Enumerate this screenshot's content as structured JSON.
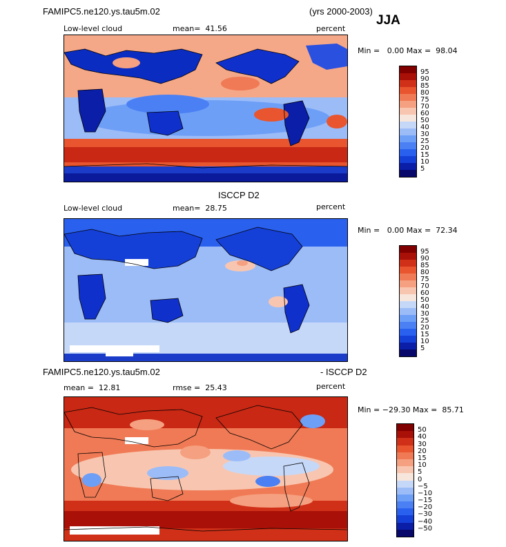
{
  "header": {
    "model_title": "FAMIPC5.ne120.ys.tau5m.02",
    "years": "(yrs 2000-2003)",
    "season": "JJA"
  },
  "panels": [
    {
      "title": "",
      "variable": "Low-level cloud",
      "stat": "mean=  41.56",
      "units": "percent",
      "minmax": "Min =   0.00 Max =  98.04",
      "colorbar_labels": [
        "95",
        "90",
        "85",
        "80",
        "75",
        "70",
        "60",
        "50",
        "40",
        "30",
        "25",
        "20",
        "15",
        "10",
        "5"
      ]
    },
    {
      "title": "ISCCP D2",
      "variable": "Low-level cloud",
      "stat": "mean=  28.75",
      "units": "percent",
      "minmax": "Min =   0.00 Max =  72.34",
      "colorbar_labels": [
        "95",
        "90",
        "85",
        "80",
        "75",
        "70",
        "60",
        "50",
        "40",
        "30",
        "25",
        "20",
        "15",
        "10",
        "5"
      ]
    },
    {
      "title_left": "FAMIPC5.ne120.ys.tau5m.02",
      "title_right": "- ISCCP D2",
      "stat_mean": "mean =  12.81",
      "stat_rmse": "rmse =  25.43",
      "units": "percent",
      "minmax": "Min = −29.30 Max =  85.71",
      "colorbar_labels": [
        "50",
        "40",
        "30",
        "20",
        "15",
        "10",
        "5",
        "0",
        "−5",
        "−10",
        "−15",
        "−20",
        "−30",
        "−40",
        "−50"
      ]
    }
  ],
  "colors": {
    "abs_scale": [
      "#08086a",
      "#0a1ea8",
      "#1540d8",
      "#2a60ee",
      "#4a80f4",
      "#6e9ff7",
      "#9cbcf8",
      "#c6d8f8",
      "#f7e6dc",
      "#f8c6b0",
      "#f5a080",
      "#f07a55",
      "#e8552e",
      "#d03018",
      "#a81008",
      "#800000"
    ],
    "diff_scale": [
      "#08086a",
      "#0a1ea8",
      "#1540d8",
      "#2a60ee",
      "#4a80f4",
      "#6e9ff7",
      "#9cbcf8",
      "#c6d8f8",
      "#f7e6dc",
      "#f8c6b0",
      "#f5a080",
      "#f07a55",
      "#e8552e",
      "#d03018",
      "#a81008",
      "#800000"
    ]
  }
}
